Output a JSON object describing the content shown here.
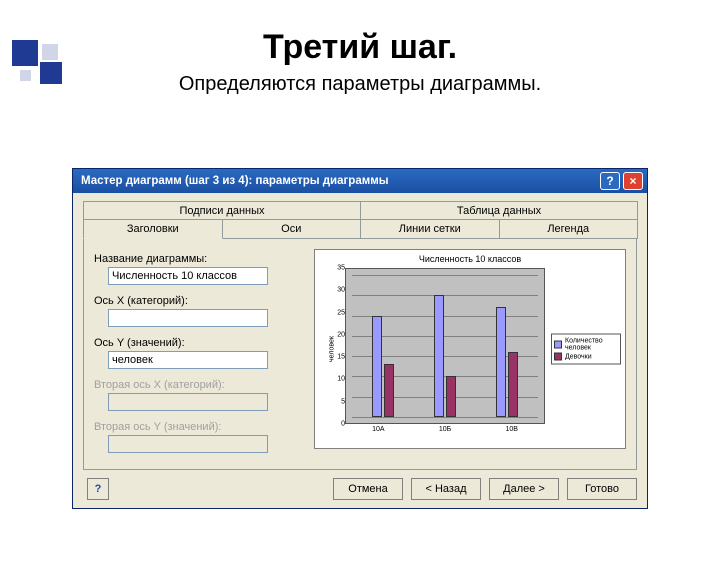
{
  "slide": {
    "title": "Третий шаг.",
    "subtitle": "Определяются параметры диаграммы."
  },
  "window": {
    "title": "Мастер диаграмм (шаг 3 из 4): параметры диаграммы"
  },
  "tabs": {
    "row1": [
      "Подписи данных",
      "Таблица данных"
    ],
    "row2": [
      "Заголовки",
      "Оси",
      "Линии сетки",
      "Легенда"
    ]
  },
  "fields": {
    "chart_title_label": "Название диаграммы:",
    "chart_title_value": "Численность 10 классов",
    "x_axis_label": "Ось X (категорий):",
    "x_axis_value": "",
    "y_axis_label": "Ось Y (значений):",
    "y_axis_value": "человек",
    "x2_axis_label": "Вторая ось X (категорий):",
    "y2_axis_label": "Вторая ось Y (значений):"
  },
  "preview_chart": {
    "title": "Численность 10 классов",
    "y_axis_title": "человек",
    "categories": [
      "10А",
      "10Б",
      "10В"
    ],
    "series": [
      {
        "name": "Количество человек",
        "color": "#9999ff",
        "values": [
          25,
          30,
          27
        ]
      },
      {
        "name": "Девочки",
        "color": "#993366",
        "values": [
          13,
          10,
          16
        ]
      }
    ],
    "ylim": [
      0,
      35
    ],
    "ytick_step": 5,
    "plot_bg": "#c0c0c0",
    "grid_color": "#808080"
  },
  "buttons": {
    "cancel": "Отмена",
    "back": "< Назад",
    "next": "Далее >",
    "finish": "Готово",
    "help": "?"
  }
}
